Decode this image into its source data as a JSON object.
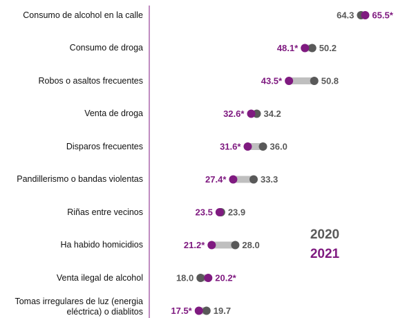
{
  "chart_data": {
    "type": "dumbbell",
    "categories": [
      "Consumo de alcohol en la calle",
      "Consumo de droga",
      "Robos o asaltos frecuentes",
      "Venta de droga",
      "Disparos frecuentes",
      "Pandillerismo o bandas violentas",
      "Riñas entre vecinos",
      "Ha habido homicidios",
      "Venta ilegal de alcohol",
      "Tomas irregulares de luz (energia eléctrica) o diablitos"
    ],
    "series": [
      {
        "name": "2020",
        "color": "#595959",
        "values": [
          64.3,
          50.2,
          50.8,
          34.2,
          36.0,
          33.3,
          23.9,
          28.0,
          18.0,
          19.7
        ],
        "value_labels": [
          "64.3",
          "50.2",
          "50.8",
          "34.2",
          "36.0",
          "33.3",
          "23.9",
          "28.0",
          "18.0",
          "19.7"
        ]
      },
      {
        "name": "2021",
        "color": "#7f1a80",
        "values": [
          65.5,
          48.1,
          43.5,
          32.6,
          31.6,
          27.4,
          23.5,
          21.2,
          20.2,
          17.5
        ],
        "value_labels": [
          "65.5*",
          "48.1*",
          "43.5*",
          "32.6*",
          "31.6*",
          "27.4*",
          "23.5",
          "21.2*",
          "20.2*",
          "17.5*"
        ]
      }
    ],
    "connector_color": "#bfbfbf",
    "xlim": [
      0,
      70
    ]
  }
}
